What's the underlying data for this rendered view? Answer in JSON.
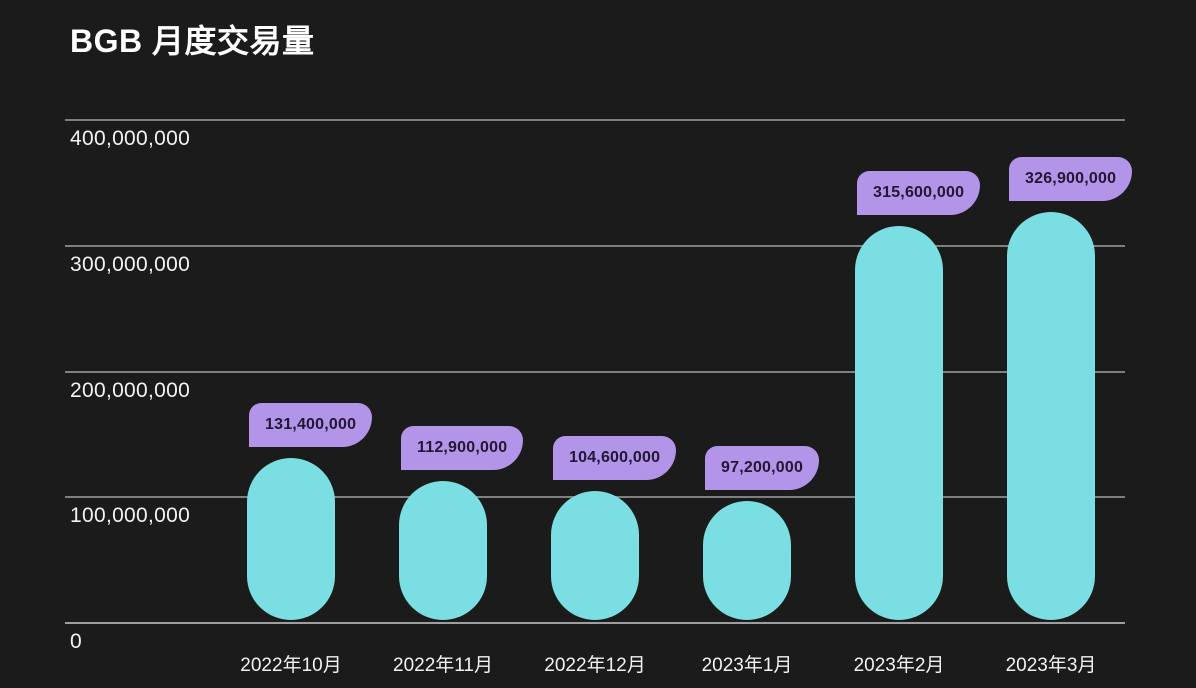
{
  "title": "BGB 月度交易量",
  "colors": {
    "background": "#1b1b1b",
    "bar": "#7bdee2",
    "badge_bg": "#b294e8",
    "badge_text": "#221834",
    "gridline": "#7f7f7f",
    "axis_line": "#9f9f9f",
    "label_text": "#f2f2f2",
    "title_text": "#ffffff"
  },
  "chart_data": {
    "type": "bar",
    "title": "BGB 月度交易量",
    "categories": [
      "2022年10月",
      "2022年11月",
      "2022年12月",
      "2023年1月",
      "2023年2月",
      "2023年3月"
    ],
    "values": [
      131400000,
      112900000,
      104600000,
      97200000,
      315600000,
      326900000
    ],
    "value_labels": [
      "131,400,000",
      "112,900,000",
      "104,600,000",
      "97,200,000",
      "315,600,000",
      "326,900,000"
    ],
    "xlabel": "",
    "ylabel": "",
    "ylim": [
      0,
      400000000
    ],
    "yticks": [
      0,
      100000000,
      200000000,
      300000000,
      400000000
    ],
    "ytick_labels": [
      "0",
      "100,000,000",
      "200,000,000",
      "300,000,000",
      "400,000,000"
    ],
    "grid": true,
    "legend": false,
    "bar_shape": "pill-rounded-ends",
    "value_label_style": "purple-callout-badge-above-bar"
  }
}
